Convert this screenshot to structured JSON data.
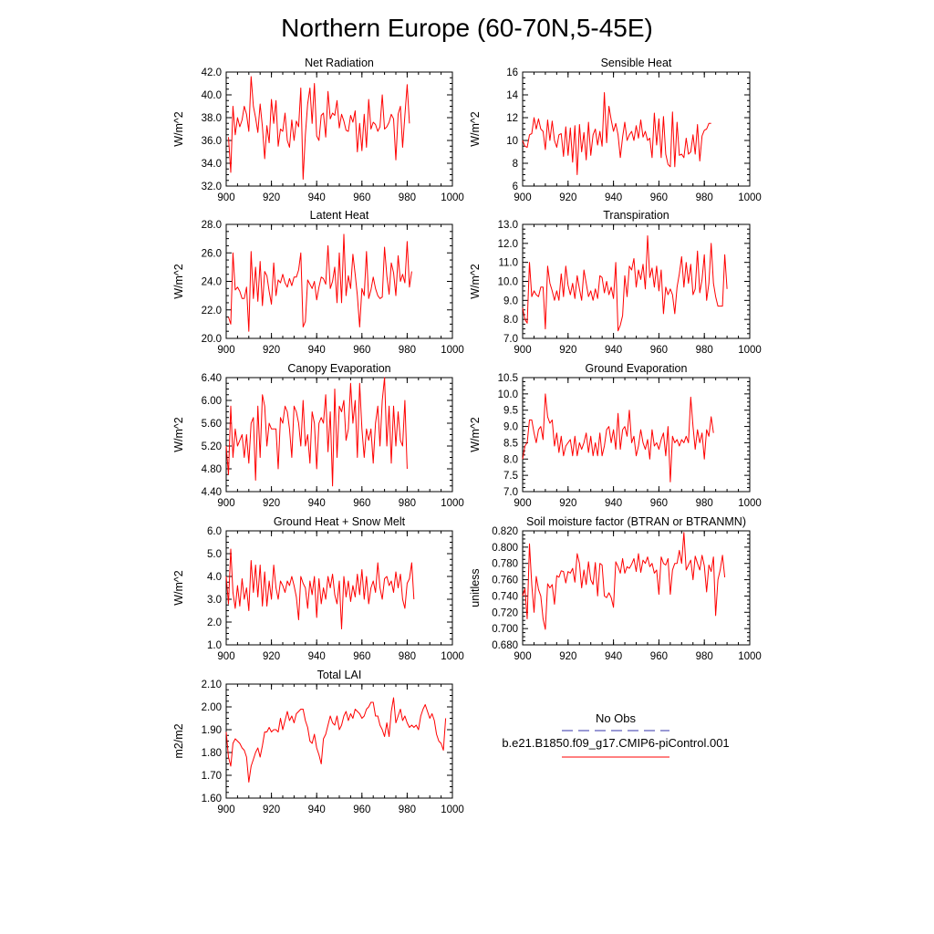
{
  "figure": {
    "title": "Northern Europe (60-70N,5-45E)",
    "line_color": "#ff0000",
    "obs_color": "#3333aa"
  },
  "legend": {
    "obs_label": "No Obs",
    "model_label": "b.e21.B1850.f09_g17.CMIP6-piControl.001"
  },
  "chart_data": [
    {
      "id": "net-radiation",
      "type": "line",
      "title": "Net Radiation",
      "ylabel": "W/m^2",
      "xlim": [
        900,
        1000
      ],
      "ylim": [
        32,
        42
      ],
      "xticks": [
        900,
        920,
        940,
        960,
        980,
        1000
      ],
      "yticks": [
        32,
        34,
        36,
        38,
        40,
        42
      ],
      "yticklabels": [
        "32.0",
        "34.0",
        "36.0",
        "38.0",
        "40.0",
        "42.0"
      ],
      "x_start": 901,
      "values": [
        36.3,
        33.2,
        39.0,
        36.5,
        38.0,
        37.2,
        37.8,
        39.0,
        38.3,
        36.8,
        41.6,
        39.0,
        38.0,
        36.7,
        39.2,
        37.2,
        34.4,
        37.3,
        35.8,
        39.6,
        37.5,
        39.5,
        35.5,
        37.0,
        36.8,
        38.4,
        36.0,
        35.4,
        37.8,
        36.0,
        37.7,
        37.2,
        40.6,
        32.6,
        36.5,
        39.2,
        40.6,
        37.5,
        41.0,
        36.4,
        36.0,
        38.2,
        38.4,
        36.3,
        40.3,
        37.9,
        38.4,
        38.2,
        39.5,
        37.1,
        38.3,
        37.7,
        36.9,
        36.8,
        38.2,
        37.6,
        38.6,
        35.0,
        37.5,
        35.1,
        38.3,
        35.4,
        39.6,
        37.0,
        37.6,
        37.4,
        36.8,
        37.2,
        40.0,
        37.0,
        37.2,
        37.6,
        38.3,
        37.9,
        34.3,
        38.3,
        39.0,
        35.4,
        38.2,
        40.9,
        37.5
      ]
    },
    {
      "id": "sensible-heat",
      "type": "line",
      "title": "Sensible Heat",
      "ylabel": "W/m^2",
      "xlim": [
        900,
        1000
      ],
      "ylim": [
        6,
        16
      ],
      "xticks": [
        900,
        920,
        940,
        960,
        980,
        1000
      ],
      "yticks": [
        6,
        8,
        10,
        12,
        14,
        16
      ],
      "yticklabels": [
        "6",
        "8",
        "10",
        "12",
        "14",
        "16"
      ],
      "x_start": 900,
      "values": [
        10.0,
        9.5,
        9.4,
        10.5,
        10.6,
        12.0,
        11.0,
        11.9,
        11.0,
        10.8,
        9.2,
        11.8,
        10.0,
        11.7,
        10.0,
        9.4,
        10.5,
        10.6,
        8.6,
        11.2,
        8.7,
        11.1,
        8.1,
        11.3,
        7.0,
        11.4,
        9.0,
        10.7,
        8.3,
        11.6,
        8.7,
        10.5,
        11.0,
        9.6,
        10.8,
        9.5,
        14.2,
        9.8,
        13.0,
        11.8,
        10.8,
        11.5,
        10.5,
        8.5,
        10.3,
        11.6,
        10.0,
        10.5,
        10.8,
        10.0,
        11.3,
        10.2,
        11.8,
        10.3,
        10.8,
        10.0,
        10.2,
        8.5,
        12.4,
        9.6,
        11.9,
        8.5,
        12.1,
        8.8,
        7.9,
        7.7,
        12.5,
        7.7,
        11.6,
        8.7,
        8.8,
        8.5,
        10.2,
        8.8,
        9.0,
        10.5,
        8.8,
        11.4,
        8.2,
        10.4,
        10.9,
        11.0,
        11.5,
        11.5
      ]
    },
    {
      "id": "latent-heat",
      "type": "line",
      "title": "Latent Heat",
      "ylabel": "W/m^2",
      "xlim": [
        900,
        1000
      ],
      "ylim": [
        20,
        28
      ],
      "xticks": [
        900,
        920,
        940,
        960,
        980,
        1000
      ],
      "yticks": [
        20,
        22,
        24,
        26,
        28
      ],
      "yticklabels": [
        "20.0",
        "22.0",
        "24.0",
        "26.0",
        "28.0"
      ],
      "x_start": 901,
      "values": [
        21.5,
        21.0,
        26.0,
        23.4,
        23.6,
        23.3,
        22.8,
        22.8,
        23.6,
        20.5,
        26.1,
        22.8,
        25.0,
        22.6,
        25.4,
        22.3,
        24.7,
        24.4,
        23.3,
        22.4,
        25.3,
        23.0,
        24.1,
        23.9,
        24.5,
        23.9,
        23.6,
        24.2,
        23.7,
        24.3,
        24.3,
        24.8,
        26.0,
        20.8,
        21.2,
        24.1,
        23.8,
        23.5,
        24.0,
        22.7,
        23.6,
        24.3,
        24.2,
        23.8,
        26.5,
        23.5,
        24.0,
        25.0,
        22.5,
        26.0,
        22.5,
        27.3,
        23.0,
        24.4,
        23.5,
        25.9,
        24.5,
        23.0,
        20.8,
        23.5,
        23.0,
        26.1,
        22.8,
        23.4,
        24.3,
        23.5,
        23.0,
        22.8,
        22.9,
        26.4,
        24.4,
        23.1,
        25.3,
        24.6,
        23.0,
        25.8,
        24.0,
        24.5,
        23.9,
        26.8,
        23.6,
        24.7
      ]
    },
    {
      "id": "transpiration",
      "type": "line",
      "title": "Transpiration",
      "ylabel": "W/m^2",
      "xlim": [
        900,
        1000
      ],
      "ylim": [
        7,
        13
      ],
      "xticks": [
        900,
        920,
        940,
        960,
        980,
        1000
      ],
      "yticks": [
        7,
        8,
        9,
        10,
        11,
        12,
        13
      ],
      "yticklabels": [
        "7.0",
        "8.0",
        "9.0",
        "10.0",
        "11.0",
        "12.0",
        "13.0"
      ],
      "x_start": 900,
      "values": [
        8.6,
        8.0,
        7.8,
        11.0,
        9.2,
        9.5,
        9.3,
        9.2,
        9.7,
        9.7,
        7.5,
        10.8,
        9.9,
        9.5,
        9.0,
        9.5,
        9.0,
        10.4,
        9.2,
        10.8,
        9.8,
        9.3,
        9.9,
        9.1,
        10.3,
        9.6,
        9.0,
        10.6,
        9.9,
        9.2,
        9.5,
        9.0,
        9.6,
        9.1,
        10.3,
        10.2,
        9.4,
        10.0,
        9.3,
        9.7,
        9.1,
        11.0,
        7.4,
        7.7,
        8.2,
        10.3,
        9.2,
        10.8,
        10.6,
        11.2,
        9.7,
        10.6,
        10.1,
        10.9,
        9.6,
        12.4,
        10.2,
        10.7,
        9.7,
        10.8,
        9.5,
        10.6,
        8.3,
        9.7,
        9.3,
        9.6,
        9.3,
        8.3,
        9.7,
        10.4,
        11.3,
        9.7,
        11.0,
        9.9,
        10.9,
        9.3,
        9.6,
        11.6,
        9.4,
        10.1,
        11.4,
        9.0,
        9.9,
        12.0,
        9.9,
        9.2,
        8.7,
        8.7,
        8.7,
        11.4,
        9.6
      ]
    },
    {
      "id": "canopy-evaporation",
      "type": "line",
      "title": "Canopy Evaporation",
      "ylabel": "W/m^2",
      "xlim": [
        900,
        1000
      ],
      "ylim": [
        4.4,
        6.4
      ],
      "xticks": [
        900,
        920,
        940,
        960,
        980,
        1000
      ],
      "yticks": [
        4.4,
        4.8,
        5.2,
        5.6,
        6.0,
        6.4
      ],
      "yticklabels": [
        "4.40",
        "4.80",
        "5.20",
        "5.60",
        "6.00",
        "6.40"
      ],
      "x_start": 900,
      "values": [
        5.2,
        4.7,
        5.9,
        5.0,
        5.5,
        5.2,
        5.3,
        5.4,
        5.0,
        5.4,
        4.9,
        5.6,
        5.7,
        4.6,
        5.9,
        5.0,
        6.1,
        5.9,
        5.2,
        5.6,
        5.5,
        5.5,
        5.5,
        4.8,
        5.7,
        5.6,
        5.9,
        5.8,
        5.5,
        5.0,
        5.9,
        5.8,
        5.6,
        5.2,
        6.0,
        5.2,
        5.4,
        4.9,
        5.8,
        5.6,
        4.8,
        5.6,
        5.7,
        5.6,
        6.1,
        5.1,
        5.8,
        4.5,
        6.2,
        5.0,
        5.9,
        5.8,
        6.0,
        5.3,
        5.5,
        6.3,
        5.6,
        6.0,
        5.0,
        6.3,
        5.5,
        5.0,
        5.5,
        5.3,
        5.5,
        4.9,
        5.6,
        5.9,
        5.2,
        6.0,
        6.4,
        5.2,
        5.9,
        4.9,
        5.9,
        5.2,
        5.8,
        5.3,
        5.2,
        6.0,
        4.8
      ]
    },
    {
      "id": "ground-evaporation",
      "type": "line",
      "title": "Ground Evaporation",
      "ylabel": "W/m^2",
      "xlim": [
        900,
        1000
      ],
      "ylim": [
        7,
        10.5
      ],
      "xticks": [
        900,
        920,
        940,
        960,
        980,
        1000
      ],
      "yticks": [
        7.0,
        7.5,
        8.0,
        8.5,
        9.0,
        9.5,
        10.0,
        10.5
      ],
      "yticklabels": [
        "7.0",
        "7.5",
        "8.0",
        "8.5",
        "9.0",
        "9.5",
        "10.0",
        "10.5"
      ],
      "x_start": 900,
      "values": [
        8.0,
        8.4,
        8.5,
        9.2,
        9.2,
        8.8,
        8.5,
        8.9,
        9.0,
        8.6,
        10.0,
        9.3,
        9.1,
        9.2,
        8.4,
        8.8,
        8.2,
        8.7,
        8.1,
        8.4,
        8.5,
        8.6,
        8.1,
        8.7,
        8.1,
        8.5,
        8.3,
        8.5,
        8.8,
        8.2,
        8.7,
        8.1,
        8.5,
        8.1,
        8.8,
        8.1,
        8.4,
        8.9,
        9.0,
        8.5,
        8.9,
        8.3,
        9.4,
        8.3,
        8.9,
        9.0,
        8.7,
        9.5,
        8.5,
        8.7,
        8.1,
        8.4,
        8.9,
        8.5,
        8.3,
        8.6,
        8.0,
        8.9,
        8.4,
        8.5,
        8.3,
        8.6,
        8.8,
        8.1,
        9.0,
        7.3,
        8.7,
        8.5,
        8.6,
        8.4,
        8.6,
        8.5,
        8.7,
        8.5,
        9.9,
        9.0,
        8.3,
        8.9,
        8.5,
        8.8,
        8.0,
        8.9,
        8.7,
        9.3,
        8.8
      ]
    },
    {
      "id": "ground-heat-snow-melt",
      "type": "line",
      "title": "Ground Heat + Snow Melt",
      "ylabel": "W/m^2",
      "xlim": [
        900,
        1000
      ],
      "ylim": [
        1,
        6
      ],
      "xticks": [
        900,
        920,
        940,
        960,
        980,
        1000
      ],
      "yticks": [
        1,
        2,
        3,
        4,
        5,
        6
      ],
      "yticklabels": [
        "1.0",
        "2.0",
        "3.0",
        "4.0",
        "5.0",
        "6.0"
      ],
      "x_start": 900,
      "values": [
        4.0,
        2.8,
        5.2,
        3.3,
        2.6,
        3.6,
        2.7,
        3.9,
        3.0,
        3.5,
        2.5,
        4.7,
        3.3,
        4.5,
        3.1,
        4.5,
        2.7,
        4.2,
        2.7,
        3.8,
        3.0,
        4.5,
        3.5,
        3.0,
        3.8,
        3.6,
        3.3,
        3.8,
        3.6,
        4.0,
        3.6,
        3.1,
        2.1,
        4.0,
        3.7,
        3.5,
        2.6,
        3.8,
        3.2,
        4.0,
        2.2,
        3.9,
        2.8,
        3.5,
        3.0,
        4.0,
        3.5,
        4.1,
        3.2,
        2.8,
        3.8,
        1.7,
        4.0,
        3.1,
        3.8,
        2.9,
        3.6,
        3.1,
        4.1,
        3.2,
        4.3,
        3.0,
        4.0,
        2.8,
        3.5,
        3.8,
        3.3,
        4.6,
        3.5,
        3.0,
        3.9,
        4.0,
        3.6,
        3.8,
        3.3,
        4.2,
        3.5,
        4.1,
        3.0,
        2.6,
        3.7,
        3.9,
        4.6,
        3.0
      ]
    },
    {
      "id": "soil-moisture-factor",
      "type": "line",
      "title": "Soil moisture factor (BTRAN or BTRANMN)",
      "ylabel": "unitless",
      "xlim": [
        900,
        1000
      ],
      "ylim": [
        0.68,
        0.82
      ],
      "xticks": [
        900,
        920,
        940,
        960,
        980,
        1000
      ],
      "yticks": [
        0.68,
        0.7,
        0.72,
        0.74,
        0.76,
        0.78,
        0.8,
        0.82
      ],
      "yticklabels": [
        "0.680",
        "0.700",
        "0.720",
        "0.740",
        "0.760",
        "0.780",
        "0.800",
        "0.820"
      ],
      "x_start": 900,
      "values": [
        0.74,
        0.749,
        0.712,
        0.804,
        0.754,
        0.72,
        0.764,
        0.748,
        0.74,
        0.712,
        0.699,
        0.755,
        0.75,
        0.754,
        0.73,
        0.765,
        0.763,
        0.771,
        0.77,
        0.756,
        0.77,
        0.768,
        0.774,
        0.757,
        0.792,
        0.78,
        0.75,
        0.772,
        0.754,
        0.782,
        0.76,
        0.754,
        0.781,
        0.74,
        0.78,
        0.778,
        0.74,
        0.738,
        0.744,
        0.738,
        0.726,
        0.782,
        0.776,
        0.768,
        0.786,
        0.768,
        0.776,
        0.774,
        0.779,
        0.786,
        0.77,
        0.792,
        0.769,
        0.784,
        0.78,
        0.788,
        0.776,
        0.78,
        0.768,
        0.772,
        0.742,
        0.788,
        0.78,
        0.778,
        0.786,
        0.742,
        0.772,
        0.78,
        0.78,
        0.796,
        0.78,
        0.818,
        0.772,
        0.778,
        0.784,
        0.76,
        0.789,
        0.78,
        0.772,
        0.79,
        0.777,
        0.745,
        0.778,
        0.77,
        0.788,
        0.716,
        0.76,
        0.772,
        0.79,
        0.763
      ]
    },
    {
      "id": "total-lai",
      "type": "line",
      "title": "Total LAI",
      "ylabel": "m2/m2",
      "xlim": [
        900,
        1000
      ],
      "ylim": [
        1.6,
        2.1
      ],
      "xticks": [
        900,
        920,
        940,
        960,
        980,
        1000
      ],
      "yticks": [
        1.6,
        1.7,
        1.8,
        1.9,
        2.0,
        2.1
      ],
      "yticklabels": [
        "1.60",
        "1.70",
        "1.80",
        "1.90",
        "2.00",
        "2.10"
      ],
      "x_start": 900,
      "values": [
        1.89,
        1.78,
        1.74,
        1.84,
        1.86,
        1.85,
        1.84,
        1.82,
        1.81,
        1.78,
        1.67,
        1.74,
        1.77,
        1.8,
        1.82,
        1.78,
        1.83,
        1.89,
        1.89,
        1.91,
        1.89,
        1.9,
        1.9,
        1.89,
        1.95,
        1.9,
        1.94,
        1.98,
        1.94,
        1.96,
        1.93,
        1.97,
        1.98,
        1.99,
        1.99,
        1.94,
        1.91,
        1.85,
        1.84,
        1.88,
        1.82,
        1.79,
        1.75,
        1.86,
        1.88,
        1.92,
        1.96,
        1.93,
        1.92,
        1.96,
        1.9,
        1.92,
        1.96,
        1.98,
        1.94,
        1.97,
        1.95,
        1.99,
        1.98,
        1.97,
        1.95,
        1.96,
        1.99,
        2.0,
        2.02,
        2.02,
        1.96,
        1.96,
        1.92,
        1.9,
        1.87,
        1.93,
        1.87,
        1.98,
        2.04,
        1.93,
        1.96,
        1.99,
        1.94,
        1.96,
        1.93,
        1.91,
        1.92,
        1.91,
        1.92,
        1.9,
        1.96,
        1.99,
        2.01,
        1.98,
        1.95,
        1.97,
        1.94,
        1.88,
        1.85,
        1.84,
        1.81,
        1.95
      ]
    }
  ]
}
